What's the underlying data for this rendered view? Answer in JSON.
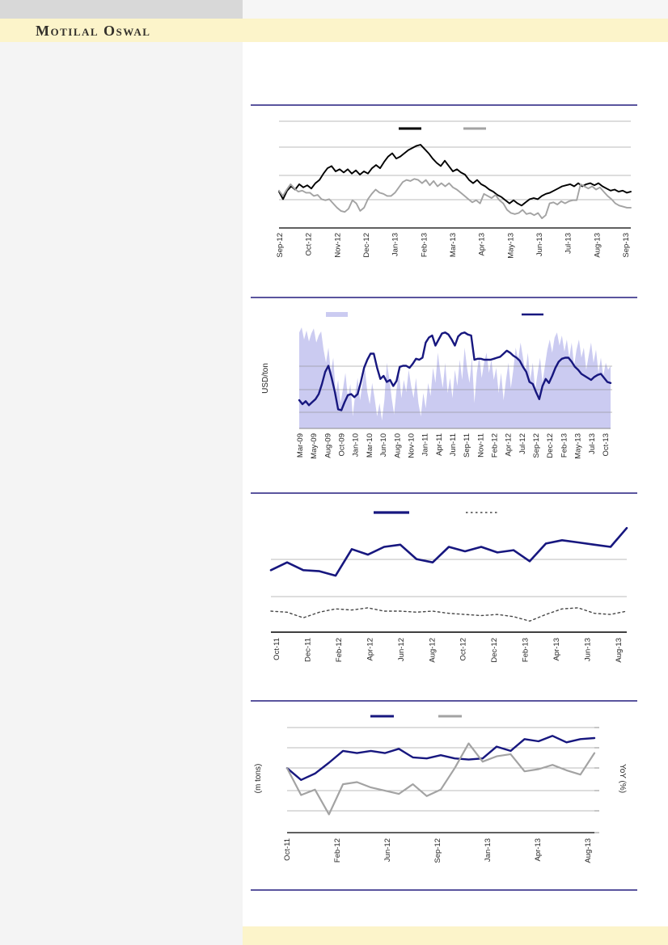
{
  "header": {
    "brand": "Motilal Oswal"
  },
  "colors": {
    "navy": "#17177f",
    "black": "#000000",
    "gray_series": "#a3a3a3",
    "lavender_area": "#cbcbf1",
    "dotted_series": "#474747",
    "separator": "#241d7e",
    "band_yellow": "#fcf4ca",
    "top_bar_gray": "#d8d8d8",
    "sidebar_gray": "#f4f4f4",
    "gridline": "#8f8f8f",
    "tick_text": "#262626"
  },
  "chart_data": [
    {
      "id": "chart-1",
      "type": "line",
      "title": "",
      "ylim": [
        0,
        100
      ],
      "value_scale": "percent-of-plot-height (no y-axis tick labels visible)",
      "x_labels": [
        "Sep-12",
        "Oct-12",
        "Nov-12",
        "Dec-12",
        "Jan-13",
        "Feb-13",
        "Mar-13",
        "Apr-13",
        "May-13",
        "Jun-13",
        "Jul-13",
        "Aug-13",
        "Sep-13"
      ],
      "series": [
        {
          "name": "dark-line",
          "color": "#000000",
          "values": [
            34,
            27,
            35,
            39,
            36,
            41,
            38,
            40,
            37,
            42,
            45,
            51,
            56,
            58,
            53,
            55,
            52,
            55,
            51,
            54,
            50,
            53,
            51,
            56,
            59,
            56,
            62,
            67,
            70,
            65,
            67,
            70,
            73,
            75,
            77,
            78,
            74,
            70,
            65,
            61,
            58,
            63,
            58,
            53,
            55,
            52,
            50,
            45,
            42,
            45,
            41,
            39,
            36,
            34,
            31,
            29,
            26,
            23,
            26,
            23,
            21,
            24,
            27,
            28,
            27,
            30,
            32,
            33,
            35,
            37,
            39,
            40,
            41,
            39,
            42,
            39,
            41,
            42,
            40,
            42,
            39,
            37,
            35,
            36,
            34,
            35,
            33,
            34
          ]
        },
        {
          "name": "gray-line",
          "color": "#a3a3a3",
          "values": [
            35,
            30,
            36,
            41,
            37,
            34,
            35,
            33,
            33,
            30,
            31,
            27,
            26,
            27,
            23,
            19,
            16,
            15,
            18,
            26,
            23,
            16,
            19,
            27,
            32,
            36,
            33,
            32,
            30,
            30,
            33,
            38,
            43,
            45,
            44,
            46,
            45,
            42,
            45,
            40,
            44,
            39,
            42,
            39,
            42,
            38,
            36,
            33,
            30,
            27,
            24,
            26,
            23,
            32,
            30,
            28,
            31,
            26,
            23,
            17,
            14,
            13,
            14,
            17,
            13,
            14,
            12,
            14,
            9,
            12,
            23,
            24,
            22,
            25,
            23,
            25,
            26,
            26,
            41,
            39,
            37,
            39,
            36,
            38,
            34,
            30,
            27,
            23,
            21,
            20,
            19,
            19
          ]
        }
      ]
    },
    {
      "id": "chart-2",
      "type": "area+line",
      "title": "",
      "ylabel": "USD/ton",
      "ylim": [
        0,
        100
      ],
      "value_scale": "percent-of-plot-height (no y-axis tick labels visible)",
      "x_labels": [
        "Mar-09",
        "May-09",
        "Aug-09",
        "Oct-09",
        "Jan-10",
        "Mar-10",
        "Jun-10",
        "Aug-10",
        "Nov-10",
        "Jan-11",
        "Apr-11",
        "Jun-11",
        "Sep-11",
        "Nov-11",
        "Feb-12",
        "Apr-12",
        "Jul-12",
        "Sep-12",
        "Dec-12",
        "Feb-13",
        "May-13",
        "Jul-13",
        "Oct-13"
      ],
      "series": [
        {
          "name": "area-band",
          "color": "#cbcbf1",
          "values": [
            95,
            100,
            88,
            97,
            86,
            94,
            99,
            85,
            92,
            96,
            78,
            65,
            80,
            56,
            70,
            35,
            48,
            25,
            39,
            55,
            30,
            44,
            12,
            34,
            50,
            28,
            44,
            60,
            36,
            24,
            45,
            30,
            12,
            25,
            8,
            28,
            65,
            50,
            30,
            14,
            38,
            56,
            30,
            48,
            36,
            58,
            42,
            30,
            50,
            25,
            12,
            35,
            20,
            45,
            32,
            60,
            45,
            75,
            55,
            40,
            65,
            35,
            50,
            30,
            58,
            42,
            68,
            48,
            80,
            60,
            45,
            70,
            25,
            55,
            72,
            50,
            65,
            75,
            55,
            68,
            48,
            60,
            35,
            55,
            28,
            48,
            65,
            40,
            58,
            80,
            68,
            85,
            70,
            55,
            75,
            48,
            65,
            38,
            55,
            70,
            45,
            62,
            78,
            88,
            75,
            90,
            95,
            82,
            92,
            76,
            88,
            70,
            85,
            62,
            78,
            88,
            70,
            80,
            58,
            72,
            85,
            65,
            78,
            55,
            70,
            52,
            65,
            58,
            62
          ]
        },
        {
          "name": "navy-line",
          "color": "#17177f",
          "values": [
            28,
            24,
            27,
            23,
            26,
            29,
            34,
            44,
            56,
            62,
            50,
            36,
            19,
            18,
            26,
            33,
            34,
            31,
            34,
            46,
            60,
            68,
            74,
            74,
            60,
            49,
            52,
            46,
            48,
            42,
            47,
            61,
            62,
            62,
            60,
            64,
            69,
            68,
            70,
            85,
            90,
            92,
            82,
            88,
            94,
            95,
            93,
            88,
            82,
            91,
            94,
            95,
            93,
            92,
            68,
            69,
            69,
            68,
            68,
            68,
            69,
            70,
            71,
            74,
            77,
            75,
            72,
            70,
            67,
            61,
            56,
            46,
            44,
            36,
            29,
            42,
            49,
            45,
            52,
            60,
            66,
            69,
            70,
            70,
            66,
            61,
            58,
            54,
            52,
            50,
            48,
            51,
            53,
            54,
            50,
            46,
            45
          ]
        }
      ]
    },
    {
      "id": "chart-3",
      "type": "line",
      "title": "",
      "ylim": [
        0,
        100
      ],
      "value_scale": "percent-of-plot-height (no y-axis tick labels visible)",
      "x_labels": [
        "Oct-11",
        "Dec-11",
        "Feb-12",
        "Apr-12",
        "Jun-12",
        "Aug-12",
        "Oct-12",
        "Dec-12",
        "Feb-13",
        "Apr-13",
        "Jun-13",
        "Aug-13"
      ],
      "series": [
        {
          "name": "navy-line",
          "color": "#17177f",
          "values": [
            56,
            63,
            56,
            55,
            51,
            75,
            70,
            77,
            79,
            66,
            63,
            77,
            73,
            77,
            72,
            74,
            64,
            80,
            83,
            81,
            79,
            77,
            94
          ]
        },
        {
          "name": "dotted-line",
          "color": "#474747",
          "values": [
            19,
            18,
            13,
            18,
            21,
            20,
            22,
            19,
            19,
            18,
            19,
            17,
            16,
            15,
            16,
            14,
            10,
            16,
            21,
            22,
            17,
            16,
            19
          ]
        }
      ]
    },
    {
      "id": "chart-4",
      "type": "line",
      "title": "",
      "ylabel_left": "(m tons)",
      "ylabel_right": "YoY (%)",
      "ylim": [
        0,
        100
      ],
      "value_scale": "percent-of-plot-height (no y-axis tick labels visible)",
      "x_labels": [
        "Oct-11",
        "Feb-12",
        "Jun-12",
        "Sep-12",
        "Jan-13",
        "Apr-13",
        "Aug-13"
      ],
      "series": [
        {
          "name": "navy-line-m-tons",
          "color": "#17177f",
          "values": [
            60,
            49,
            55,
            65,
            76,
            74,
            76,
            74,
            78,
            70,
            69,
            72,
            69,
            68,
            69,
            80,
            76,
            87,
            85,
            90,
            84,
            87,
            88
          ]
        },
        {
          "name": "gray-line-yoy",
          "color": "#a3a3a3",
          "values": [
            60,
            35,
            40,
            17,
            45,
            47,
            42,
            39,
            36,
            45,
            34,
            40,
            60,
            83,
            66,
            71,
            73,
            57,
            59,
            63,
            58,
            54,
            74
          ]
        }
      ]
    }
  ]
}
